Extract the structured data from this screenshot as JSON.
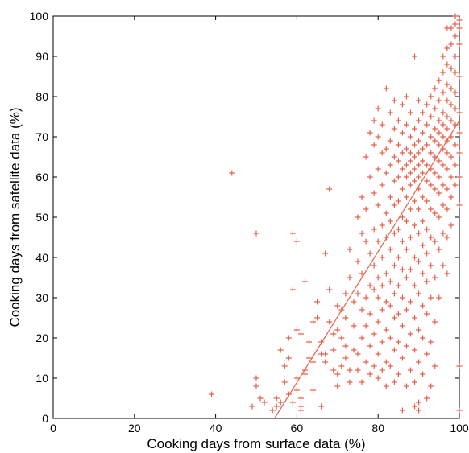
{
  "chart_data": {
    "type": "scatter",
    "title": "",
    "xlabel": "Cooking days from surface data (%)",
    "ylabel": "Cooking days from satellite data (%)",
    "xlim": [
      0,
      100
    ],
    "ylim": [
      0,
      100
    ],
    "x_ticks": [
      0,
      20,
      40,
      60,
      80,
      100
    ],
    "y_ticks": [
      0,
      10,
      20,
      30,
      40,
      50,
      60,
      70,
      80,
      90,
      100
    ],
    "grid": false,
    "legend": "none",
    "marker": "+",
    "color": "#e8604a",
    "trend_line": [
      [
        54.5,
        0
      ],
      [
        100,
        74
      ]
    ],
    "points": [
      [
        39,
        6
      ],
      [
        44,
        61
      ],
      [
        50,
        46
      ],
      [
        49,
        3
      ],
      [
        50,
        8
      ],
      [
        50,
        10
      ],
      [
        51,
        5
      ],
      [
        52,
        4
      ],
      [
        54,
        2
      ],
      [
        55,
        3
      ],
      [
        55,
        5
      ],
      [
        56,
        4
      ],
      [
        56,
        17
      ],
      [
        57,
        9
      ],
      [
        57,
        13
      ],
      [
        58,
        6
      ],
      [
        58,
        15
      ],
      [
        58,
        20
      ],
      [
        59,
        4
      ],
      [
        59,
        32
      ],
      [
        59,
        46
      ],
      [
        60,
        44
      ],
      [
        60,
        7
      ],
      [
        60,
        10
      ],
      [
        60,
        22
      ],
      [
        61,
        2
      ],
      [
        61,
        3
      ],
      [
        61,
        5
      ],
      [
        61,
        21
      ],
      [
        62,
        11
      ],
      [
        62,
        12
      ],
      [
        62,
        34
      ],
      [
        63,
        15
      ],
      [
        63,
        19
      ],
      [
        64,
        14
      ],
      [
        64,
        24
      ],
      [
        64,
        7
      ],
      [
        65,
        25
      ],
      [
        65,
        29
      ],
      [
        66,
        16
      ],
      [
        66,
        19
      ],
      [
        66,
        3
      ],
      [
        67,
        14
      ],
      [
        67,
        41
      ],
      [
        67,
        16
      ],
      [
        68,
        57
      ],
      [
        68,
        32
      ],
      [
        68,
        24
      ],
      [
        69,
        17
      ],
      [
        69,
        21
      ],
      [
        69,
        12
      ],
      [
        70,
        8
      ],
      [
        70,
        11
      ],
      [
        70,
        28
      ],
      [
        70,
        22
      ],
      [
        71,
        20
      ],
      [
        71,
        27
      ],
      [
        71,
        13
      ],
      [
        72,
        15
      ],
      [
        72,
        31
      ],
      [
        72,
        25
      ],
      [
        72,
        18
      ],
      [
        73,
        12
      ],
      [
        73,
        35
      ],
      [
        73,
        42
      ],
      [
        73,
        9
      ],
      [
        74,
        17
      ],
      [
        74,
        29
      ],
      [
        74,
        23
      ],
      [
        75,
        16
      ],
      [
        75,
        39
      ],
      [
        75,
        31
      ],
      [
        75,
        12
      ],
      [
        75,
        50
      ],
      [
        76,
        20
      ],
      [
        76,
        27
      ],
      [
        76,
        36
      ],
      [
        76,
        46
      ],
      [
        76,
        55
      ],
      [
        76,
        9
      ],
      [
        77,
        14
      ],
      [
        77,
        23
      ],
      [
        77,
        30
      ],
      [
        77,
        44
      ],
      [
        77,
        52
      ],
      [
        77,
        65
      ],
      [
        78,
        11
      ],
      [
        78,
        18
      ],
      [
        78,
        26
      ],
      [
        78,
        33
      ],
      [
        78,
        41
      ],
      [
        78,
        60
      ],
      [
        78,
        71
      ],
      [
        79,
        13
      ],
      [
        79,
        21
      ],
      [
        79,
        32
      ],
      [
        79,
        38
      ],
      [
        79,
        47
      ],
      [
        79,
        56
      ],
      [
        79,
        68
      ],
      [
        79,
        74
      ],
      [
        80,
        10
      ],
      [
        80,
        16
      ],
      [
        80,
        24
      ],
      [
        80,
        30
      ],
      [
        80,
        35
      ],
      [
        80,
        44
      ],
      [
        80,
        53
      ],
      [
        80,
        62
      ],
      [
        80,
        70
      ],
      [
        80,
        77
      ],
      [
        81,
        12
      ],
      [
        81,
        19
      ],
      [
        81,
        27
      ],
      [
        81,
        33
      ],
      [
        81,
        40
      ],
      [
        81,
        48
      ],
      [
        81,
        58
      ],
      [
        81,
        66
      ],
      [
        81,
        73
      ],
      [
        82,
        8
      ],
      [
        82,
        14
      ],
      [
        82,
        22
      ],
      [
        82,
        29
      ],
      [
        82,
        36
      ],
      [
        82,
        45
      ],
      [
        82,
        51
      ],
      [
        82,
        61
      ],
      [
        82,
        67
      ],
      [
        82,
        82
      ],
      [
        83,
        13
      ],
      [
        83,
        20
      ],
      [
        83,
        28
      ],
      [
        83,
        34
      ],
      [
        83,
        42
      ],
      [
        83,
        49
      ],
      [
        83,
        55
      ],
      [
        83,
        63
      ],
      [
        83,
        69
      ],
      [
        83,
        76
      ],
      [
        84,
        9
      ],
      [
        84,
        17
      ],
      [
        84,
        25
      ],
      [
        84,
        31
      ],
      [
        84,
        38
      ],
      [
        84,
        46
      ],
      [
        84,
        53
      ],
      [
        84,
        59
      ],
      [
        84,
        65
      ],
      [
        84,
        72
      ],
      [
        84,
        79
      ],
      [
        85,
        11
      ],
      [
        85,
        19
      ],
      [
        85,
        26
      ],
      [
        85,
        33
      ],
      [
        85,
        40
      ],
      [
        85,
        47
      ],
      [
        85,
        54
      ],
      [
        85,
        60
      ],
      [
        85,
        64
      ],
      [
        85,
        68
      ],
      [
        85,
        74
      ],
      [
        86,
        2
      ],
      [
        86,
        15
      ],
      [
        86,
        23
      ],
      [
        86,
        30
      ],
      [
        86,
        37
      ],
      [
        86,
        44
      ],
      [
        86,
        50
      ],
      [
        86,
        57
      ],
      [
        86,
        62
      ],
      [
        86,
        66
      ],
      [
        86,
        71
      ],
      [
        86,
        78
      ],
      [
        87,
        8
      ],
      [
        87,
        18
      ],
      [
        87,
        27
      ],
      [
        87,
        35
      ],
      [
        87,
        42
      ],
      [
        87,
        49
      ],
      [
        87,
        55
      ],
      [
        87,
        60
      ],
      [
        87,
        63
      ],
      [
        87,
        67
      ],
      [
        87,
        73
      ],
      [
        87,
        80
      ],
      [
        88,
        12
      ],
      [
        88,
        21
      ],
      [
        88,
        29
      ],
      [
        88,
        37
      ],
      [
        88,
        45
      ],
      [
        88,
        52
      ],
      [
        88,
        58
      ],
      [
        88,
        61
      ],
      [
        88,
        64
      ],
      [
        88,
        66
      ],
      [
        88,
        70
      ],
      [
        88,
        76
      ],
      [
        89,
        3
      ],
      [
        89,
        9
      ],
      [
        89,
        17
      ],
      [
        89,
        25
      ],
      [
        89,
        33
      ],
      [
        89,
        40
      ],
      [
        89,
        48
      ],
      [
        89,
        54
      ],
      [
        89,
        59
      ],
      [
        89,
        62
      ],
      [
        89,
        65
      ],
      [
        89,
        68
      ],
      [
        89,
        72
      ],
      [
        89,
        90
      ],
      [
        90,
        2
      ],
      [
        90,
        4
      ],
      [
        90,
        14
      ],
      [
        90,
        22
      ],
      [
        90,
        31
      ],
      [
        90,
        39
      ],
      [
        90,
        46
      ],
      [
        90,
        52
      ],
      [
        90,
        57
      ],
      [
        90,
        60
      ],
      [
        90,
        63
      ],
      [
        90,
        66
      ],
      [
        90,
        69
      ],
      [
        90,
        74
      ],
      [
        90,
        79
      ],
      [
        91,
        11
      ],
      [
        91,
        20
      ],
      [
        91,
        28
      ],
      [
        91,
        36
      ],
      [
        91,
        43
      ],
      [
        91,
        49
      ],
      [
        91,
        55
      ],
      [
        91,
        61
      ],
      [
        91,
        64
      ],
      [
        91,
        67
      ],
      [
        91,
        71
      ],
      [
        91,
        76
      ],
      [
        92,
        5
      ],
      [
        92,
        16
      ],
      [
        92,
        26
      ],
      [
        92,
        34
      ],
      [
        92,
        41
      ],
      [
        92,
        47
      ],
      [
        92,
        54
      ],
      [
        92,
        59
      ],
      [
        92,
        63
      ],
      [
        92,
        68
      ],
      [
        92,
        73
      ],
      [
        92,
        78
      ],
      [
        93,
        8
      ],
      [
        93,
        19
      ],
      [
        93,
        30
      ],
      [
        93,
        38
      ],
      [
        93,
        45
      ],
      [
        93,
        52
      ],
      [
        93,
        58
      ],
      [
        93,
        62
      ],
      [
        93,
        66
      ],
      [
        93,
        70
      ],
      [
        93,
        75
      ],
      [
        93,
        80
      ],
      [
        94,
        13
      ],
      [
        94,
        24
      ],
      [
        94,
        35
      ],
      [
        94,
        44
      ],
      [
        94,
        51
      ],
      [
        94,
        57
      ],
      [
        94,
        61
      ],
      [
        94,
        65
      ],
      [
        94,
        69
      ],
      [
        94,
        72
      ],
      [
        94,
        77
      ],
      [
        94,
        82
      ],
      [
        95,
        30
      ],
      [
        95,
        42
      ],
      [
        95,
        50
      ],
      [
        95,
        56
      ],
      [
        95,
        60
      ],
      [
        95,
        64
      ],
      [
        95,
        68
      ],
      [
        95,
        71
      ],
      [
        95,
        74
      ],
      [
        95,
        79
      ],
      [
        95,
        84
      ],
      [
        96,
        38
      ],
      [
        96,
        46
      ],
      [
        96,
        53
      ],
      [
        96,
        58
      ],
      [
        96,
        63
      ],
      [
        96,
        67
      ],
      [
        96,
        70
      ],
      [
        96,
        73
      ],
      [
        96,
        76
      ],
      [
        96,
        81
      ],
      [
        96,
        86
      ],
      [
        96,
        90
      ],
      [
        97,
        36
      ],
      [
        97,
        45
      ],
      [
        97,
        52
      ],
      [
        97,
        57
      ],
      [
        97,
        62
      ],
      [
        97,
        66
      ],
      [
        97,
        69
      ],
      [
        97,
        72
      ],
      [
        97,
        75
      ],
      [
        97,
        79
      ],
      [
        97,
        83
      ],
      [
        97,
        88
      ],
      [
        97,
        92
      ],
      [
        97,
        97
      ],
      [
        98,
        48
      ],
      [
        98,
        55
      ],
      [
        98,
        60
      ],
      [
        98,
        65
      ],
      [
        98,
        70
      ],
      [
        98,
        74
      ],
      [
        98,
        78
      ],
      [
        98,
        82
      ],
      [
        98,
        87
      ],
      [
        98,
        93
      ],
      [
        98,
        97
      ],
      [
        99,
        58
      ],
      [
        99,
        63
      ],
      [
        99,
        68
      ],
      [
        99,
        73
      ],
      [
        99,
        77
      ],
      [
        99,
        81
      ],
      [
        99,
        86
      ],
      [
        99,
        90
      ],
      [
        99,
        95
      ],
      [
        99,
        98
      ],
      [
        99,
        100
      ],
      [
        100,
        2
      ],
      [
        100,
        13
      ],
      [
        100,
        53
      ],
      [
        100,
        60
      ],
      [
        100,
        66
      ],
      [
        100,
        71
      ],
      [
        100,
        76
      ],
      [
        100,
        85
      ],
      [
        100,
        93
      ],
      [
        100,
        97
      ],
      [
        100,
        99
      ]
    ]
  }
}
